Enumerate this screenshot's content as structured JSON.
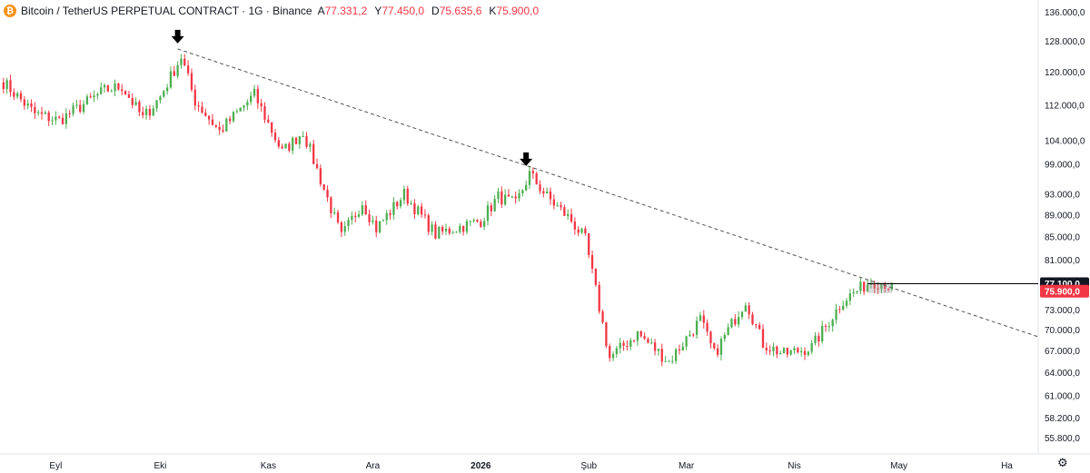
{
  "header": {
    "symbol_icon": "bitcoin-icon",
    "title": "Bitcoin / TetherUS PERPETUAL CONTRACT · 1G · Binance",
    "open_label": "A",
    "open_value": "77.331,2",
    "high_label": "Y",
    "high_value": "77.450,0",
    "low_label": "D",
    "low_value": "75.635,6",
    "close_label": "K",
    "close_value": "75.900,0"
  },
  "settings_icon": "gear-icon",
  "colors": {
    "up": "#4caf50",
    "down": "#f23645",
    "trendline": "#555555",
    "marker": "#000000"
  },
  "chart_data": {
    "type": "candlestick",
    "scale": "log",
    "ylim": [
      54000,
      138000
    ],
    "y_ticks": [
      "136.000,0",
      "128.000,0",
      "120.000,0",
      "112.000,0",
      "104.000,0",
      "99.000,0",
      "93.000,0",
      "89.000,0",
      "85.000,0",
      "81.000,0",
      "73.000,0",
      "70.000,0",
      "67.000,0",
      "64.000,0",
      "61.000,0",
      "58.200,0",
      "55.800,0"
    ],
    "y_tick_values": [
      136000,
      128000,
      120000,
      112000,
      104000,
      99000,
      93000,
      89000,
      85000,
      81000,
      73000,
      70000,
      67000,
      64000,
      61000,
      58200,
      55800
    ],
    "x_ticks": [
      "Eyl",
      "Eki",
      "Kas",
      "Ara",
      "2026",
      "Şub",
      "Mar",
      "Nis",
      "May",
      "Ha"
    ],
    "x_tick_dates": [
      "2025-09-01",
      "2025-10-01",
      "2025-11-01",
      "2025-12-01",
      "2026-01-01",
      "2026-02-01",
      "2026-03-01",
      "2026-04-01",
      "2026-05-01",
      "2026-06-01"
    ],
    "bold_tick": "2026",
    "x_range": [
      "2025-08-16",
      "2026-06-10"
    ],
    "price_labels": [
      {
        "text": "77.100,0",
        "value": 77100,
        "style": "black"
      },
      {
        "text": "75.900,0",
        "value": 75900,
        "style": "red"
      }
    ],
    "trendline": {
      "start": {
        "date": "2025-10-06",
        "price": 126000
      },
      "end": {
        "date": "2026-06-10",
        "price": 69000
      },
      "style": "dashed"
    },
    "arrows": [
      {
        "date": "2025-10-06",
        "price": 126000
      },
      {
        "date": "2026-01-14",
        "price": 97500
      }
    ],
    "range_box": {
      "start": "2026-04-22",
      "end": "2026-04-29",
      "low": 75600,
      "high": 77400
    },
    "keypoints": [
      {
        "date": "2025-08-16",
        "price": 117500
      },
      {
        "date": "2025-08-25",
        "price": 110000
      },
      {
        "date": "2025-09-01",
        "price": 108500
      },
      {
        "date": "2025-09-14",
        "price": 115500
      },
      {
        "date": "2025-09-19",
        "price": 116500
      },
      {
        "date": "2025-09-25",
        "price": 109000
      },
      {
        "date": "2025-09-30",
        "price": 114000
      },
      {
        "date": "2025-10-06",
        "price": 124000
      },
      {
        "date": "2025-10-10",
        "price": 113000
      },
      {
        "date": "2025-10-17",
        "price": 106000
      },
      {
        "date": "2025-10-27",
        "price": 114500
      },
      {
        "date": "2025-11-04",
        "price": 101500
      },
      {
        "date": "2025-11-10",
        "price": 106000
      },
      {
        "date": "2025-11-21",
        "price": 85000
      },
      {
        "date": "2025-11-27",
        "price": 91500
      },
      {
        "date": "2025-12-01",
        "price": 86500
      },
      {
        "date": "2025-12-09",
        "price": 93000
      },
      {
        "date": "2025-12-18",
        "price": 85500
      },
      {
        "date": "2025-12-31",
        "price": 88000
      },
      {
        "date": "2026-01-05",
        "price": 92500
      },
      {
        "date": "2026-01-10",
        "price": 91000
      },
      {
        "date": "2026-01-14",
        "price": 97000
      },
      {
        "date": "2026-01-19",
        "price": 92500
      },
      {
        "date": "2026-01-26",
        "price": 88000
      },
      {
        "date": "2026-01-30",
        "price": 84500
      },
      {
        "date": "2026-02-06",
        "price": 66000
      },
      {
        "date": "2026-02-14",
        "price": 69500
      },
      {
        "date": "2026-02-23",
        "price": 65500
      },
      {
        "date": "2026-03-04",
        "price": 71500
      },
      {
        "date": "2026-03-08",
        "price": 66500
      },
      {
        "date": "2026-03-17",
        "price": 74500
      },
      {
        "date": "2026-03-22",
        "price": 68000
      },
      {
        "date": "2026-03-28",
        "price": 66500
      },
      {
        "date": "2026-04-05",
        "price": 67500
      },
      {
        "date": "2026-04-14",
        "price": 74500
      },
      {
        "date": "2026-04-22",
        "price": 77500
      },
      {
        "date": "2026-04-26",
        "price": 77200
      },
      {
        "date": "2026-04-29",
        "price": 75900
      }
    ]
  }
}
